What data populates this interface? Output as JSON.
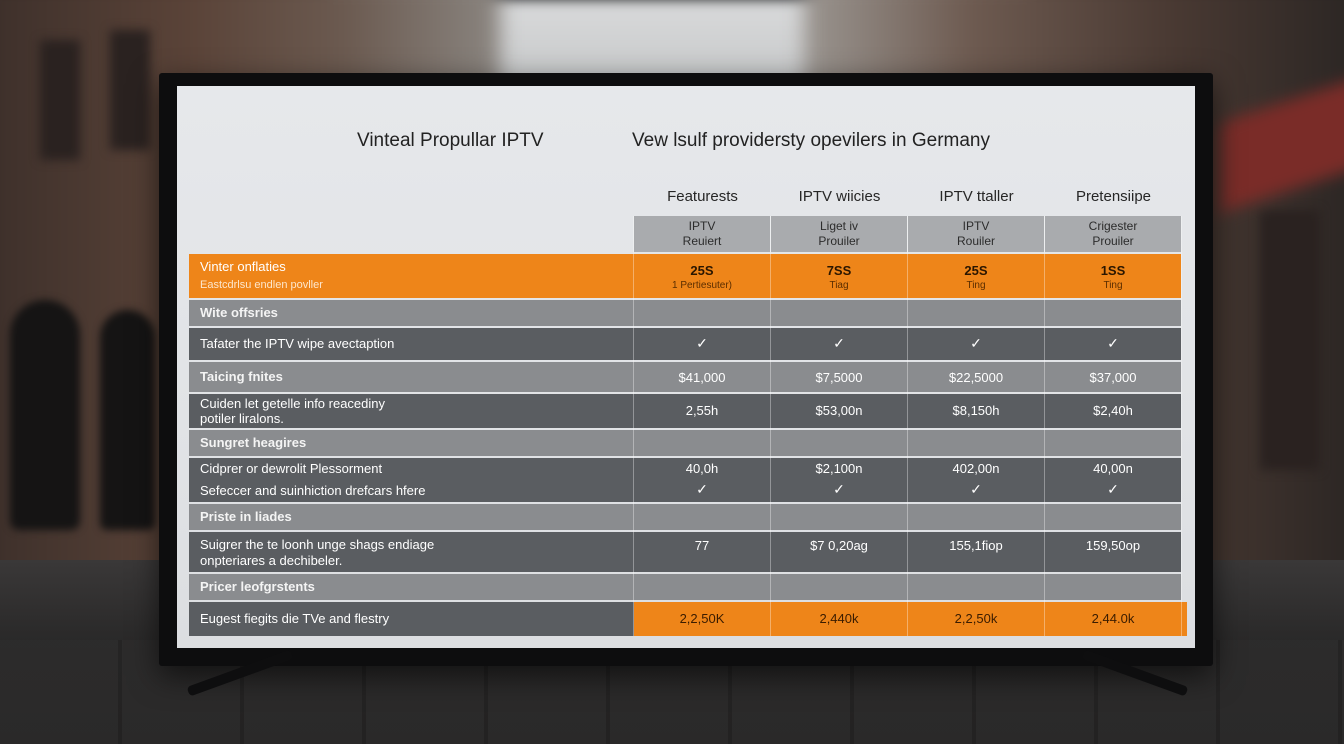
{
  "screen": {
    "title_left": "Vinteal Propullar IPTV",
    "title_right": "Vew lsulf providersty opevilers in Germany"
  },
  "columns": [
    "Featurests",
    "IPTV wiicies",
    "IPTV ttaller",
    "Pretensiipe"
  ],
  "subheaders": [
    "IPTV\nReuiert",
    "Liget iv\nProuiler",
    "IPTV\nRouiler",
    "Crigester\nProuiler"
  ],
  "highlight": {
    "label": "Vinter onflaties",
    "sublabel": "Eastcdrlsu endlen povller",
    "values": [
      "25S",
      "7SS",
      "25S",
      "1SS"
    ],
    "subvalues": [
      "1 Pertiesuter)",
      "Tiag",
      "Ting",
      "Ting"
    ]
  },
  "sections": {
    "s1": "Wite offsries",
    "s2": "Taicing fnites",
    "s3": "Sungret heagires",
    "s4": "Priste in liades",
    "s5": "Pricer leofgrstents"
  },
  "rows": {
    "r1": {
      "label": "Tafater the IPTV wipe avectaption",
      "check": "✓"
    },
    "r2": {
      "values": [
        "$41,000",
        "$7,5000",
        "$22,5000",
        "$37,000"
      ]
    },
    "r3": {
      "label1": "Cuiden let getelle info reacediny",
      "label2": "potiler liralons.",
      "values": [
        "2,55h",
        "$53,00n",
        "$8,150h",
        "$2,40h"
      ]
    },
    "r4": {
      "label1": "Cidprer or dewrolit Plessorment",
      "label2": "Sefeccer and suinhiction drefcars hfere",
      "values": [
        "40,0h",
        "$2,100n",
        "402,00n",
        "40,00n"
      ],
      "check": "✓"
    },
    "r5": {
      "label1": "Suigrer the te loonh unge shags endiage",
      "label2": "onpteriares a dechibeler.",
      "values": [
        "77",
        "$7 0,20ag",
        "155,1fiop",
        "159,50op"
      ]
    },
    "r6": {
      "label": "Eugest fiegits die TVe and flestry",
      "values": [
        "2,2,50K",
        "2,440k",
        "2,2,50k",
        "2,44.0k"
      ]
    }
  }
}
